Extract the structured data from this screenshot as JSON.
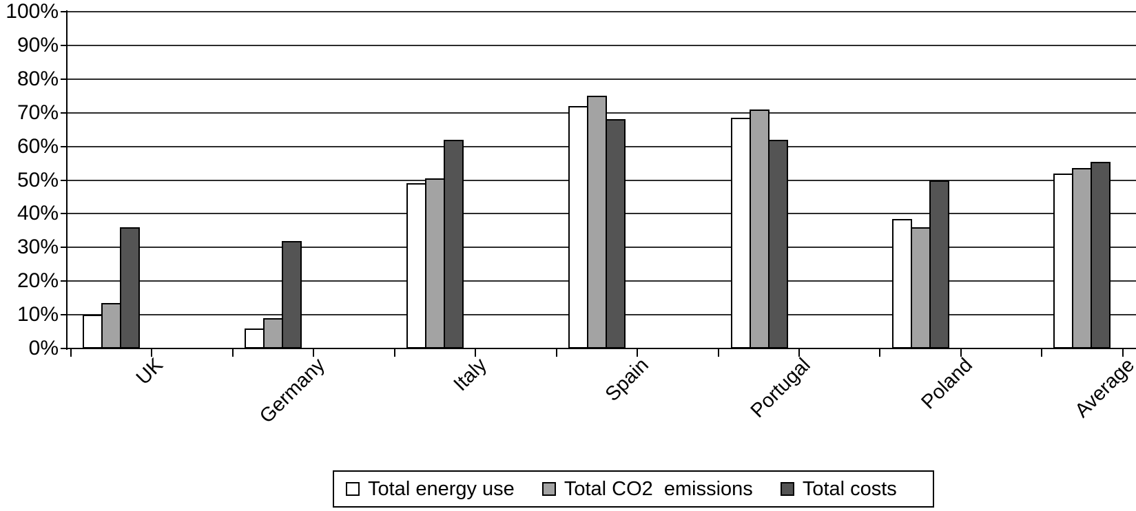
{
  "chart_data": {
    "type": "bar",
    "title": "",
    "categories": [
      "UK",
      "Germany",
      "Italy",
      "Spain",
      "Portugal",
      "Poland",
      "Average"
    ],
    "series": [
      {
        "name": "Total energy use",
        "color": "#ffffff",
        "values": [
          10,
          6,
          49,
          72,
          68.5,
          38.5,
          52
        ]
      },
      {
        "name": "Total CO2  emissions",
        "color": "#a3a3a3",
        "values": [
          13.5,
          9,
          50.5,
          75,
          71,
          36,
          53.5
        ]
      },
      {
        "name": "Total costs",
        "color": "#545454",
        "values": [
          36,
          32,
          62,
          68,
          62,
          50,
          55.5
        ]
      }
    ],
    "y_axis": {
      "min": 0,
      "max": 100,
      "step": 10,
      "tick_labels": [
        "0%",
        "10%",
        "20%",
        "30%",
        "40%",
        "50%",
        "60%",
        "70%",
        "80%",
        "90%",
        "100%"
      ]
    },
    "grid": true,
    "legend_position": "bottom",
    "colors": {
      "axis": "#000000",
      "gridline": "#2b2b2b",
      "background": "#ffffff"
    }
  }
}
